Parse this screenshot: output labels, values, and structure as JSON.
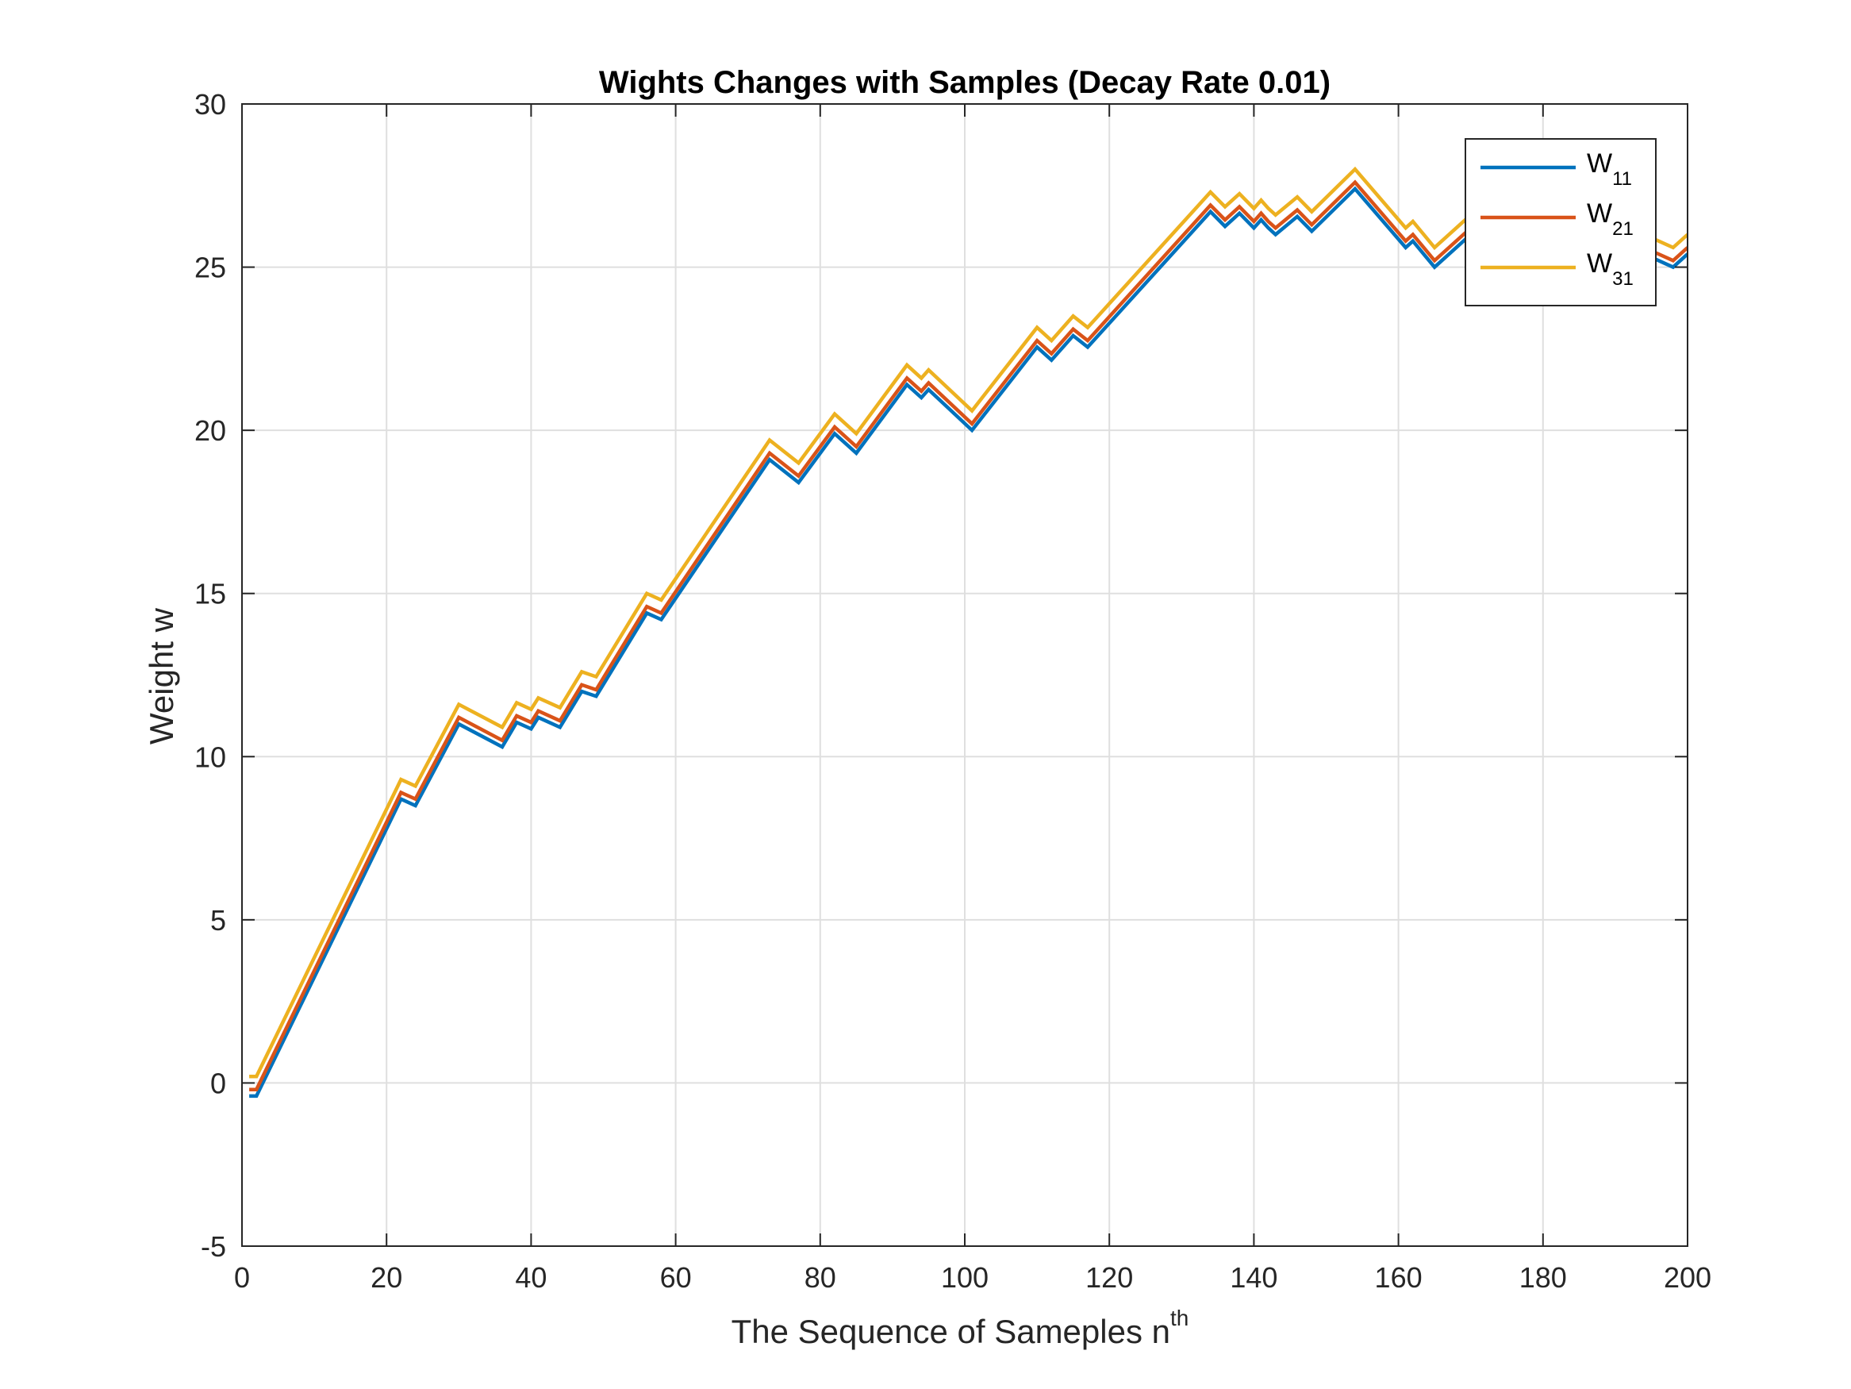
{
  "chart_data": {
    "type": "line",
    "title": "Wights Changes with Samples (Decay Rate 0.01)",
    "xlabel": "The Sequence of Sameples n",
    "xlabel_superscript": "th",
    "ylabel": "Weight w",
    "xlim": [
      0,
      200
    ],
    "ylim": [
      -5,
      30
    ],
    "xticks": [
      0,
      20,
      40,
      60,
      80,
      100,
      120,
      140,
      160,
      180,
      200
    ],
    "yticks": [
      -5,
      0,
      5,
      10,
      15,
      20,
      25,
      30
    ],
    "grid": true,
    "legend_position": "top-right",
    "series": [
      {
        "name": "W",
        "name_subscript": "11",
        "color": "#0072BD",
        "offset": -0.3
      },
      {
        "name": "W",
        "name_subscript": "21",
        "color": "#D95319",
        "offset": -0.1
      },
      {
        "name": "W",
        "name_subscript": "31",
        "color": "#EDB120",
        "offset": 0.3
      }
    ],
    "base_x": [
      1,
      2,
      22,
      24,
      30,
      36,
      38,
      40,
      41,
      44,
      47,
      49,
      56,
      58,
      73,
      77,
      82,
      85,
      92,
      94,
      95,
      101,
      110,
      112,
      115,
      117,
      134,
      136,
      138,
      140,
      141,
      142,
      143,
      146,
      148,
      154,
      161,
      162,
      165,
      170,
      175,
      180,
      185,
      190,
      195,
      198,
      200
    ],
    "base_y": [
      -0.1,
      -0.1,
      9.0,
      8.8,
      11.3,
      10.6,
      11.35,
      11.15,
      11.5,
      11.2,
      12.3,
      12.15,
      14.7,
      14.5,
      19.4,
      18.7,
      20.2,
      19.6,
      21.7,
      21.3,
      21.55,
      20.3,
      22.85,
      22.45,
      23.2,
      22.85,
      27.0,
      26.55,
      26.95,
      26.5,
      26.75,
      26.5,
      26.3,
      26.85,
      26.4,
      27.7,
      25.9,
      26.1,
      25.3,
      26.3,
      26.0,
      25.6,
      25.9,
      25.8,
      25.6,
      25.3,
      25.7
    ]
  }
}
